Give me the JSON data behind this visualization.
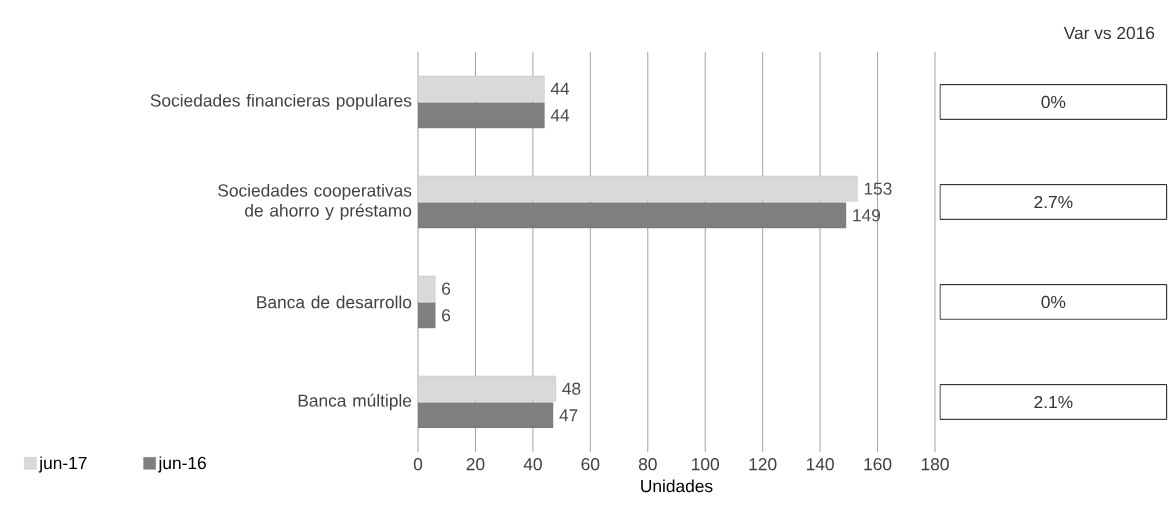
{
  "chart_data": {
    "type": "bar",
    "orientation": "horizontal",
    "categories": [
      "Sociedades financieras populares",
      "Sociedades cooperativas de ahorro y préstamo",
      "Banca de desarrollo",
      "Banca múltiple"
    ],
    "series": [
      {
        "name": "jun-17",
        "color": "#d9d9d9",
        "values": [
          44,
          153,
          6,
          48
        ]
      },
      {
        "name": "jun-16",
        "color": "#7f7f7f",
        "values": [
          44,
          149,
          6,
          47
        ]
      }
    ],
    "xlim": [
      0,
      180
    ],
    "xticks": [
      0,
      20,
      40,
      60,
      80,
      100,
      120,
      140,
      160,
      180
    ],
    "xlabel": "Unidades",
    "grid": "x",
    "legend": "bottom left",
    "data_labels": true,
    "annotations": [
      "Var vs 2016",
      "0%",
      "2.7%",
      "0%",
      "2.1%"
    ]
  }
}
